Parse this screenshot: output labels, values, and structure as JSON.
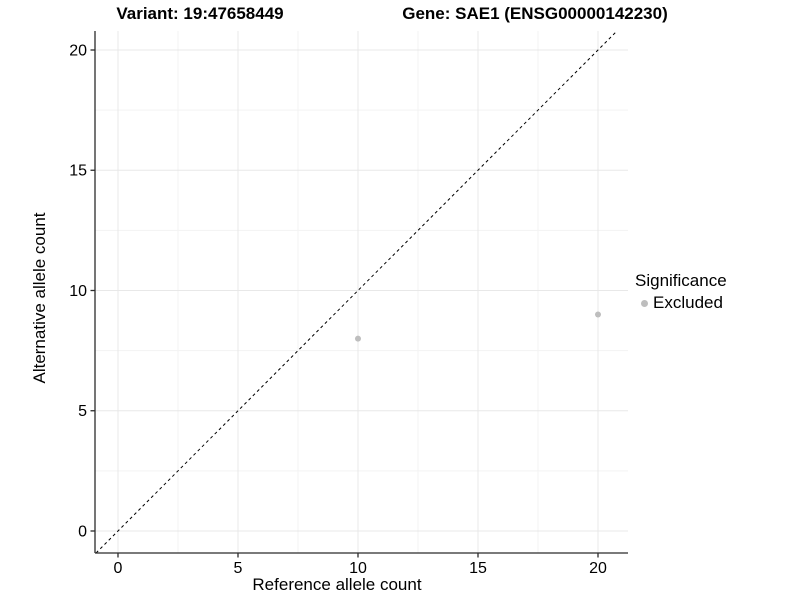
{
  "chart_data": {
    "type": "scatter",
    "titles": {
      "variant": "Variant: 19:47658449",
      "gene": "Gene: SAE1 (ENSG00000142230)"
    },
    "xlabel": "Reference allele count",
    "ylabel": "Alternative allele count",
    "xticks": [
      0,
      5,
      10,
      15,
      20
    ],
    "yticks": [
      0,
      5,
      10,
      15,
      20
    ],
    "minor_ticks_x": [
      2.5,
      7.5,
      12.5,
      17.5
    ],
    "minor_ticks_y": [
      2.5,
      7.5,
      12.5,
      17.5
    ],
    "xlim": [
      -0.958,
      21.25
    ],
    "ylim": [
      -0.915,
      20.79
    ],
    "grid": {
      "major_color": "#e8e8e8",
      "minor_color": "#f3f3f3"
    },
    "axis_color": "#2b2b2b",
    "identity_line": {
      "style": "dashed",
      "color": "#000000"
    },
    "series": [
      {
        "name": "Excluded",
        "color": "#bebebe",
        "points": [
          {
            "x": 10,
            "y": 8
          },
          {
            "x": 20,
            "y": 9
          }
        ]
      }
    ],
    "legend": {
      "title": "Significance",
      "position": "right",
      "items": [
        {
          "label": "Excluded",
          "color": "#bebebe"
        }
      ]
    }
  }
}
